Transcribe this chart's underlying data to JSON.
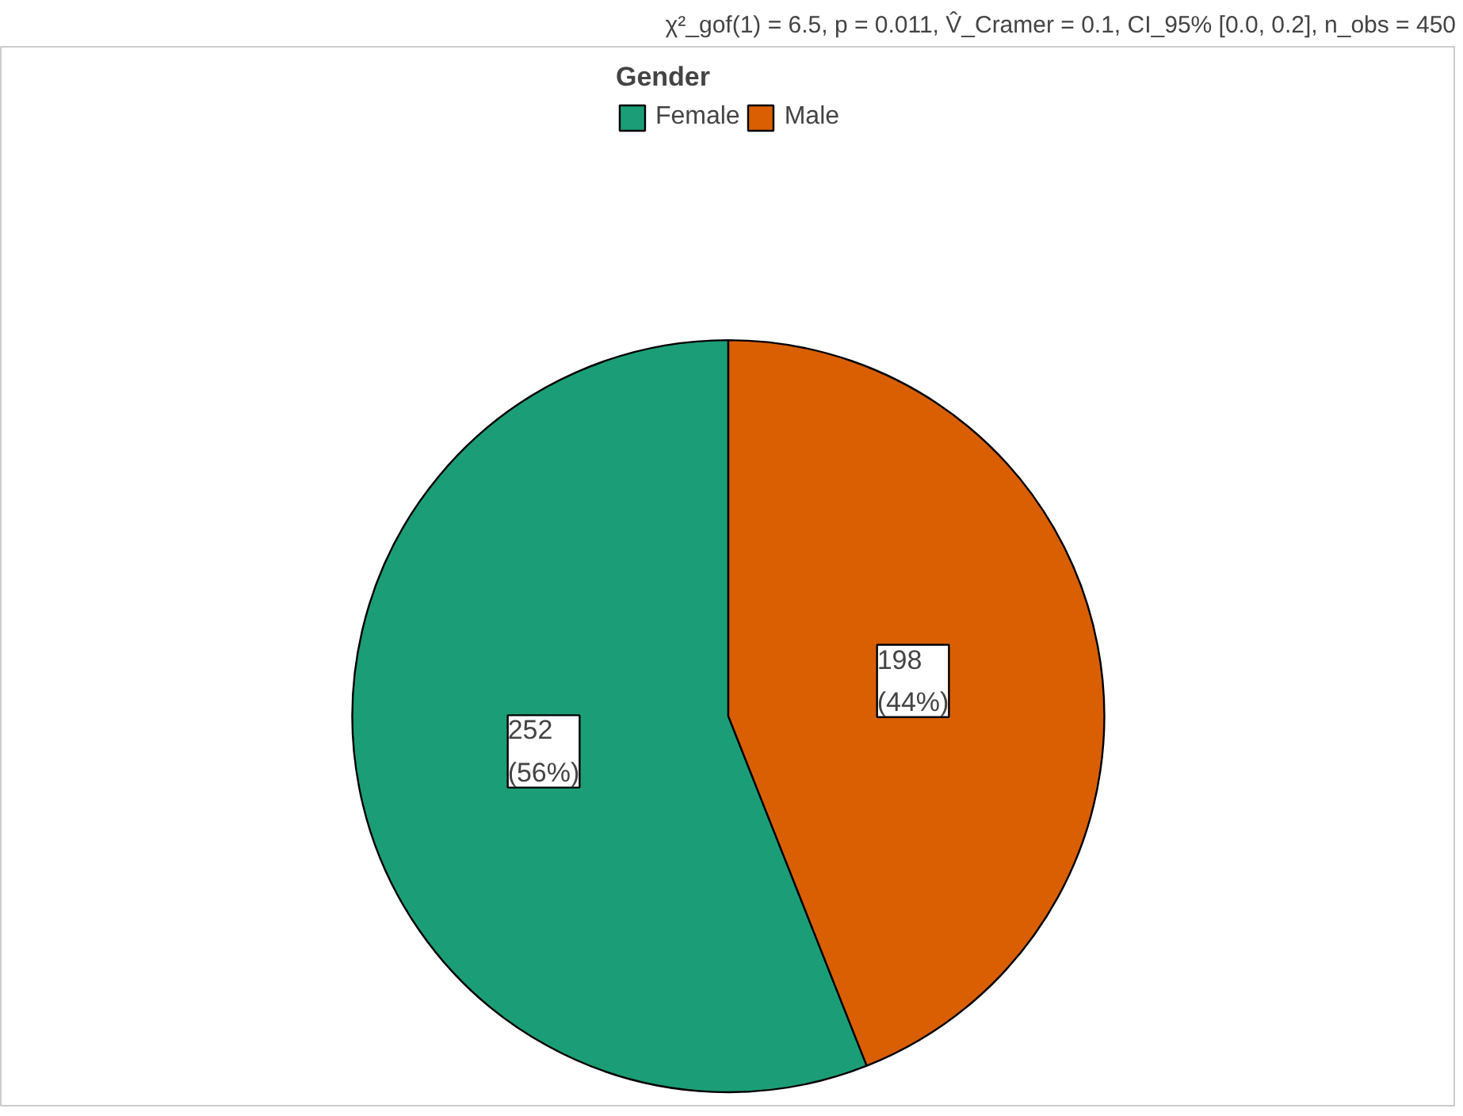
{
  "chart_data": {
    "type": "pie",
    "title": "χ²_gof(1) = 6.5, p = 0.011, V̂_Cramer = 0.1, CI_95% [0.0, 0.2], n_obs = 450",
    "legend_title": "Gender",
    "legend": "top",
    "categories": [
      "Female",
      "Male"
    ],
    "values": [
      252,
      198
    ],
    "colors": [
      "#1b9e77",
      "#d95f02"
    ],
    "value_labels": [
      "252\n(56%)",
      "198\n(44%)"
    ]
  }
}
